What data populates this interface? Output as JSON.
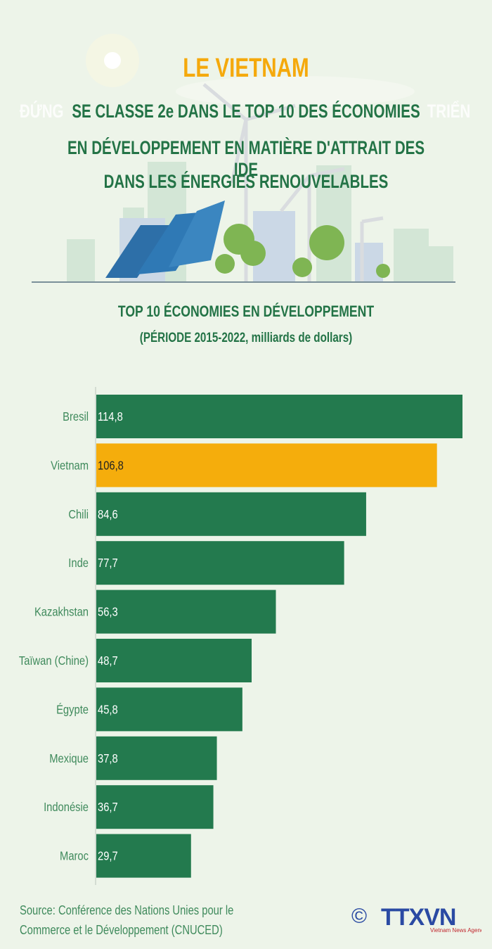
{
  "header": {
    "title": "LE VIETNAM",
    "subtitle_lines": [
      "SE CLASSE 2e DANS LE TOP 10 DES ÉCONOMIES",
      "EN DÉVELOPPEMENT EN MATIÈRE D'ATTRAIT DES IDE",
      "DANS LES ÉNERGIES RENOUVELABLES"
    ],
    "ghost_left": "ĐỨNG",
    "ghost_right": "TRIỂN"
  },
  "colors": {
    "background": "#edf4e9",
    "bar": "#237a4e",
    "highlight": "#f5ad0c",
    "title": "#237346",
    "accent": "#f5a90c"
  },
  "chart_data": {
    "type": "bar",
    "orientation": "horizontal",
    "title": "TOP 10 ÉCONOMIES EN DÉVELOPPEMENT",
    "subtitle": "(PÉRIODE 2015-2022, milliards de dollars)",
    "categories": [
      "Bresil",
      "Vietnam",
      "Chili",
      "Inde",
      "Kazakhstan",
      "Taïwan (Chine)",
      "Égypte",
      "Mexique",
      "Indonésie",
      "Maroc"
    ],
    "values": [
      114.8,
      106.8,
      84.6,
      77.7,
      56.3,
      48.7,
      45.8,
      37.8,
      36.7,
      29.7
    ],
    "value_labels": [
      "114,8",
      "106,8",
      "84,6",
      "77,7",
      "56,3",
      "48,7",
      "45,8",
      "37,8",
      "36,7",
      "29,7"
    ],
    "highlight": "Vietnam",
    "xlim": [
      0,
      115
    ],
    "grid": false
  },
  "footer": {
    "source": "Source: Conférence des Nations Unies pour le Commerce et le Développement (CNUCED)",
    "logo_text": "TTXVN",
    "logo_tagline": "Vietnam News Agency",
    "copyright_symbol": "©"
  }
}
